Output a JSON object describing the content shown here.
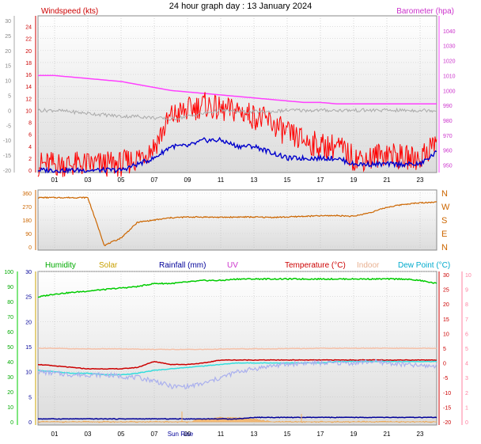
{
  "title": "24 hour graph day : 13 January 2024",
  "chart_data": [
    {
      "type": "line",
      "panel": "wind-barometer",
      "x": [
        0,
        1,
        2,
        3,
        4,
        5,
        6,
        7,
        8,
        9,
        10,
        11,
        12,
        13,
        14,
        15,
        16,
        17,
        18,
        19,
        20,
        21,
        22,
        23,
        24
      ],
      "x_tick_labels": [
        "01",
        "03",
        "05",
        "07",
        "09",
        "11",
        "13",
        "15",
        "17",
        "19",
        "21",
        "23"
      ],
      "left_axis": {
        "label": "Windspeed (kts)",
        "ylim": [
          0,
          25
        ],
        "ticks": [
          0,
          2,
          4,
          6,
          8,
          10,
          12,
          14,
          16,
          18,
          20,
          22,
          24
        ]
      },
      "far_left_axis": {
        "ylim": [
          -20,
          30
        ],
        "ticks": [
          -20,
          -15,
          -10,
          -5,
          0,
          5,
          10,
          15,
          20,
          25,
          30
        ]
      },
      "right_axis": {
        "label": "Barometer (hpa)",
        "ylim": [
          945,
          1050
        ],
        "ticks": [
          950,
          960,
          970,
          980,
          990,
          1000,
          1010,
          1020,
          1030,
          1040
        ]
      },
      "series": [
        {
          "name": "Barometer (hpa)",
          "axis": "right",
          "color": "#ff40ff",
          "values": [
            1010,
            1010,
            1009,
            1008,
            1007,
            1006,
            1004,
            1002,
            1000,
            999,
            998,
            997,
            996,
            995,
            994,
            993,
            992,
            992,
            991,
            991,
            991,
            991,
            991,
            991,
            991
          ]
        },
        {
          "axis": "left",
          "color": "#ff0000",
          "values": [
            1,
            1,
            1,
            1,
            1,
            1,
            2,
            4,
            9,
            10,
            11,
            10,
            10,
            9,
            8,
            6,
            5,
            4,
            4,
            2,
            2,
            3,
            2,
            2,
            5
          ]
        },
        {
          "axis": "left",
          "color": "#0000cc",
          "values": [
            0,
            0,
            0,
            0,
            0,
            0,
            1,
            2,
            4,
            4,
            5,
            5,
            4,
            4,
            3,
            2,
            2,
            2,
            2,
            1,
            1,
            1,
            1,
            1,
            3
          ]
        },
        {
          "axis": "far-left",
          "color": "#aaaaaa",
          "values": [
            0,
            0,
            -0.5,
            -1,
            -1.5,
            -2,
            -2,
            -2.5,
            -3,
            -2,
            -1,
            0,
            -0.5,
            -0.5,
            -0.5,
            0,
            0,
            0,
            0,
            0,
            0,
            0,
            0,
            0,
            0
          ]
        }
      ],
      "legend": "top"
    },
    {
      "type": "line",
      "panel": "wind-direction",
      "x": [
        0,
        1,
        2,
        3,
        4,
        5,
        6,
        7,
        8,
        9,
        10,
        11,
        12,
        13,
        14,
        15,
        16,
        17,
        18,
        19,
        20,
        21,
        22,
        23,
        24
      ],
      "left_axis": {
        "ylim": [
          0,
          360
        ],
        "ticks": [
          0,
          90,
          180,
          270,
          360
        ]
      },
      "right_axis": {
        "ticks": [
          "N",
          "W",
          "S",
          "E",
          "N"
        ]
      },
      "series": [
        {
          "color": "#cc6600",
          "values": [
            330,
            330,
            330,
            330,
            10,
            60,
            165,
            180,
            195,
            200,
            200,
            198,
            200,
            200,
            198,
            200,
            205,
            208,
            210,
            205,
            230,
            265,
            285,
            295,
            300
          ]
        }
      ]
    },
    {
      "type": "line",
      "panel": "weather",
      "x": [
        0,
        1,
        2,
        3,
        4,
        5,
        6,
        7,
        8,
        9,
        10,
        11,
        12,
        13,
        14,
        15,
        16,
        17,
        18,
        19,
        20,
        21,
        22,
        23,
        24
      ],
      "x_tick_labels": [
        "01",
        "03",
        "05",
        "07",
        "09",
        "11",
        "13",
        "15",
        "17",
        "19",
        "21",
        "23"
      ],
      "annotation": "Sun Rise",
      "left_axis": {
        "ylim": [
          0,
          100
        ],
        "ticks": [
          0,
          10,
          20,
          30,
          40,
          50,
          60,
          70,
          80,
          90,
          100
        ]
      },
      "inner_left_axis": {
        "ylim": [
          0,
          30
        ],
        "ticks": [
          0,
          5,
          10,
          15,
          20,
          25,
          30
        ]
      },
      "right_axis": {
        "ylim": [
          -20,
          30
        ],
        "ticks": [
          -20,
          -15,
          -10,
          -5,
          0,
          5,
          10,
          15,
          20,
          25,
          30
        ]
      },
      "far_right_axis": {
        "ylim": [
          0,
          10
        ],
        "ticks": [
          0,
          1,
          2,
          3,
          4,
          5,
          6,
          7,
          8,
          9,
          10
        ]
      },
      "legend_entries": [
        {
          "label": "Humidity",
          "color": "#00aa00"
        },
        {
          "label": "Solar",
          "color": "#c8a000"
        },
        {
          "label": "Rainfall (mm)",
          "color": "#000099"
        },
        {
          "label": "UV",
          "color": "#cc33cc"
        },
        {
          "label": "Temperature (°C)",
          "color": "#cc0000"
        },
        {
          "label": "Indoor",
          "color": "#e8b090"
        },
        {
          "label": "Dew Point (°C)",
          "color": "#00aacc"
        }
      ],
      "series": [
        {
          "name": "Humidity",
          "axis": "left",
          "color": "#00cc00",
          "values": [
            83,
            85,
            86,
            87,
            88,
            89,
            90,
            92,
            92,
            93,
            94,
            94,
            95,
            95,
            95,
            95,
            95,
            95,
            95,
            95,
            95,
            95,
            95,
            94,
            92
          ]
        },
        {
          "name": "Indoor",
          "axis": "right",
          "color": "#f4c0a8",
          "values": [
            5,
            5,
            4.8,
            4.8,
            4.8,
            4.8,
            4.7,
            4.6,
            4.6,
            4.6,
            4.6,
            4.7,
            4.8,
            4.8,
            4.8,
            4.9,
            4.9,
            5,
            5,
            5,
            5,
            5,
            5,
            5,
            5
          ]
        },
        {
          "name": "Temperature (°C)",
          "axis": "right",
          "color": "#cc0000",
          "values": [
            -0.5,
            -1,
            -1.5,
            -2,
            -2,
            -2,
            -1.5,
            0.5,
            -0.5,
            -0.5,
            0,
            1,
            1,
            1,
            1,
            1,
            1,
            1,
            1,
            1,
            1,
            1,
            1,
            1,
            1
          ]
        },
        {
          "name": "Dew Point (°C)",
          "axis": "right",
          "color": "#33dddd",
          "values": [
            -2.5,
            -3,
            -3.5,
            -3.5,
            -4,
            -4,
            -3.5,
            -2.5,
            -2,
            -1.5,
            -1,
            -0.5,
            0,
            0,
            0,
            0,
            0,
            0,
            0.5,
            0.5,
            0.5,
            0.5,
            0.5,
            0.5,
            0.5
          ]
        },
        {
          "axis": "right",
          "color": "#aab0ee",
          "values": [
            -3,
            -3.5,
            -4,
            -4,
            -4,
            -4.5,
            -5,
            -6,
            -8,
            -8,
            -7,
            -5,
            -3,
            -2,
            -1,
            -0.5,
            0,
            0,
            0,
            0,
            0.5,
            0,
            -0.5,
            -1,
            -1
          ]
        },
        {
          "name": "Solar",
          "axis": "inner-left",
          "color": "#f0a040",
          "values": [
            0,
            0,
            0,
            0,
            0,
            0,
            0,
            0,
            0,
            0,
            0.5,
            0.8,
            0.8,
            0.5,
            0,
            0,
            0,
            0,
            0,
            0,
            0,
            0,
            0,
            0,
            0
          ]
        },
        {
          "name": "Rainfall (mm)",
          "axis": "right",
          "color": "#000099",
          "values": [
            -19,
            -19,
            -19,
            -19,
            -19,
            -19,
            -19,
            -19,
            -19,
            -19,
            -19,
            -19,
            -19,
            -18.5,
            -18.5,
            -18.5,
            -18.5,
            -18.5,
            -18.5,
            -18.5,
            -18.5,
            -18.5,
            -18.5,
            -18.5,
            -18.5
          ]
        }
      ]
    }
  ]
}
